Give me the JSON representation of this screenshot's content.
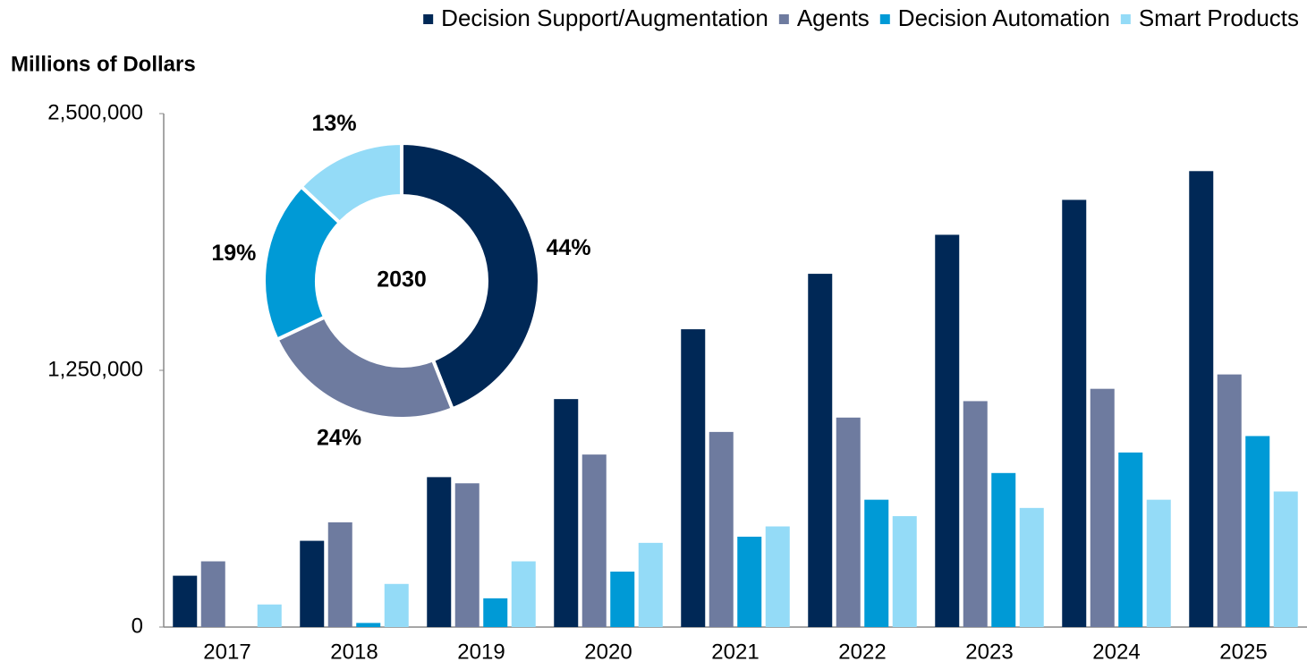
{
  "chart_data": [
    {
      "type": "bar",
      "y_label": "Millions of Dollars",
      "categories": [
        "2017",
        "2018",
        "2019",
        "2020",
        "2021",
        "2022",
        "2023",
        "2024",
        "2025"
      ],
      "series": [
        {
          "name": "Decision Support/Augmentation",
          "color": "#002856",
          "values": [
            250000,
            420000,
            730000,
            1110000,
            1450000,
            1720000,
            1910000,
            2080000,
            2220000
          ]
        },
        {
          "name": "Agents",
          "color": "#6e7b9f",
          "values": [
            320000,
            510000,
            700000,
            840000,
            950000,
            1020000,
            1100000,
            1160000,
            1230000
          ]
        },
        {
          "name": "Decision Automation",
          "color": "#009ad6",
          "values": [
            0,
            20000,
            140000,
            270000,
            440000,
            620000,
            750000,
            850000,
            930000
          ]
        },
        {
          "name": "Smart Products",
          "color": "#94dbf7",
          "values": [
            110000,
            210000,
            320000,
            410000,
            490000,
            540000,
            580000,
            620000,
            660000
          ]
        }
      ],
      "ylim": [
        0,
        2500000
      ],
      "yticks": [
        0,
        {
          "value": 1250000,
          "label": "1,250,000"
        },
        {
          "value": 2500000,
          "label": "2,500,000"
        }
      ],
      "legend": "top-right"
    },
    {
      "type": "pie",
      "title": "2030",
      "donut": true,
      "values": [
        44,
        24,
        19,
        13
      ],
      "value_labels": [
        "44%",
        "24%",
        "19%",
        "13%"
      ],
      "colors": [
        "#002856",
        "#6e7b9f",
        "#009ad6",
        "#94dbf7"
      ]
    }
  ]
}
